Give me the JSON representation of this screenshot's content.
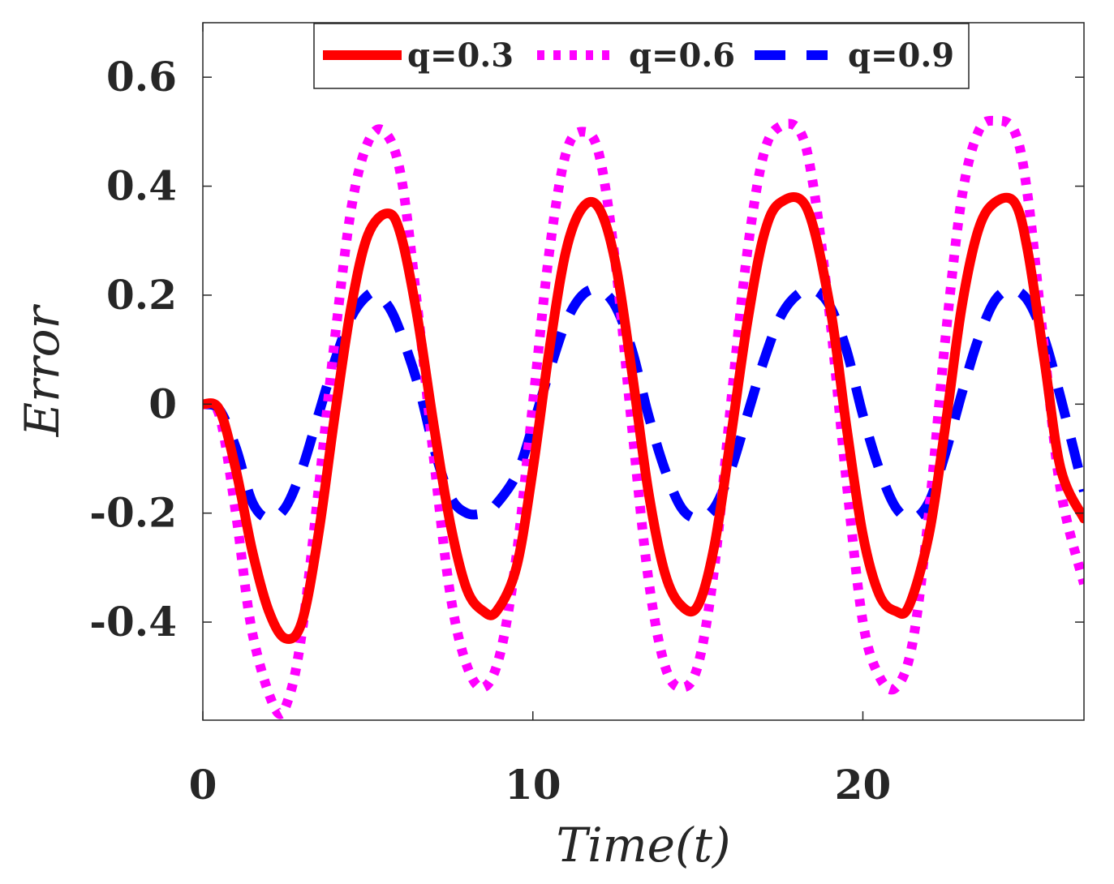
{
  "chart_data": {
    "type": "line",
    "title": "",
    "xlabel": "Time(t)",
    "ylabel": "Error",
    "xlim": [
      0,
      26.7
    ],
    "ylim": [
      -0.58,
      0.7
    ],
    "xticks": [
      0,
      10,
      20
    ],
    "xtick_labels": [
      "0",
      "10",
      "20"
    ],
    "yticks": [
      -0.4,
      -0.2,
      0,
      0.2,
      0.4,
      0.6
    ],
    "ytick_labels": [
      "-0.4",
      "-0.2",
      "0",
      "0.2",
      "0.4",
      "0.6"
    ],
    "grid": false,
    "legend_position": "top",
    "series": [
      {
        "name": "q=0.3",
        "color": "#ff0000",
        "style": "solid",
        "x": [
          0,
          0.5,
          1.0,
          1.5,
          2.0,
          2.5,
          3.0,
          3.5,
          4.0,
          4.5,
          5.0,
          5.6,
          6.0,
          6.5,
          7.0,
          7.5,
          8.0,
          8.5,
          8.9,
          9.5,
          10.0,
          10.5,
          11.0,
          11.5,
          12.0,
          12.5,
          13.0,
          13.5,
          14.0,
          14.5,
          15.0,
          15.5,
          16.0,
          16.5,
          17.0,
          17.5,
          18.3,
          19.0,
          19.5,
          20.0,
          20.5,
          21.0,
          21.4,
          22.0,
          22.5,
          23.0,
          23.5,
          24.0,
          24.6,
          25.0,
          25.5,
          26.0,
          26.7
        ],
        "values": [
          0,
          -0.01,
          -0.12,
          -0.27,
          -0.38,
          -0.43,
          -0.4,
          -0.24,
          -0.02,
          0.18,
          0.31,
          0.35,
          0.31,
          0.16,
          -0.04,
          -0.22,
          -0.34,
          -0.38,
          -0.38,
          -0.3,
          -0.12,
          0.1,
          0.28,
          0.36,
          0.36,
          0.26,
          0.06,
          -0.16,
          -0.31,
          -0.37,
          -0.37,
          -0.26,
          -0.06,
          0.15,
          0.31,
          0.37,
          0.36,
          0.18,
          -0.04,
          -0.24,
          -0.35,
          -0.38,
          -0.37,
          -0.24,
          -0.04,
          0.18,
          0.32,
          0.37,
          0.37,
          0.28,
          0.08,
          -0.12,
          -0.21
        ]
      },
      {
        "name": "q=0.6",
        "color": "#ff00ff",
        "style": "dotted",
        "x": [
          0,
          0.5,
          1.0,
          1.5,
          2.2,
          2.6,
          3.0,
          3.5,
          4.0,
          4.5,
          5.0,
          5.5,
          6.0,
          6.5,
          7.0,
          7.5,
          8.0,
          8.5,
          9.0,
          9.5,
          10.0,
          10.5,
          11.0,
          11.5,
          12.0,
          12.5,
          13.0,
          13.5,
          14.0,
          14.5,
          15.0,
          15.5,
          16.0,
          16.5,
          17.0,
          17.5,
          18.1,
          18.5,
          19.0,
          19.5,
          20.0,
          20.5,
          21.0,
          21.5,
          22.0,
          22.5,
          23.0,
          23.5,
          24.0,
          24.6,
          25.0,
          25.5,
          26.0,
          26.7
        ],
        "values": [
          0,
          -0.02,
          -0.2,
          -0.42,
          -0.56,
          -0.54,
          -0.42,
          -0.16,
          0.12,
          0.36,
          0.48,
          0.5,
          0.42,
          0.18,
          -0.1,
          -0.35,
          -0.48,
          -0.52,
          -0.46,
          -0.28,
          0.0,
          0.28,
          0.46,
          0.5,
          0.46,
          0.26,
          -0.04,
          -0.32,
          -0.48,
          -0.52,
          -0.48,
          -0.3,
          0.0,
          0.28,
          0.46,
          0.51,
          0.5,
          0.4,
          0.16,
          -0.14,
          -0.4,
          -0.5,
          -0.52,
          -0.44,
          -0.2,
          0.12,
          0.38,
          0.5,
          0.52,
          0.5,
          0.38,
          0.1,
          -0.16,
          -0.33
        ]
      },
      {
        "name": "q=0.9",
        "color": "#0000ff",
        "style": "dashed",
        "x": [
          0,
          0.5,
          1.0,
          1.5,
          2.0,
          2.5,
          3.0,
          3.5,
          4.0,
          4.5,
          5.0,
          5.3,
          5.8,
          6.5,
          7.0,
          7.5,
          8.0,
          8.5,
          8.8,
          9.5,
          10.0,
          10.5,
          11.0,
          11.5,
          12.0,
          12.5,
          13.0,
          13.5,
          14.0,
          14.5,
          15.0,
          15.5,
          16.0,
          16.5,
          17.0,
          17.5,
          18.0,
          18.5,
          19.0,
          19.5,
          20.0,
          20.5,
          21.0,
          21.5,
          22.0,
          22.5,
          23.0,
          23.5,
          24.0,
          24.5,
          25.0,
          25.5,
          26.0,
          26.7
        ],
        "values": [
          0,
          -0.01,
          -0.08,
          -0.18,
          -0.21,
          -0.19,
          -0.12,
          -0.02,
          0.08,
          0.16,
          0.2,
          0.2,
          0.16,
          0.04,
          -0.08,
          -0.17,
          -0.2,
          -0.2,
          -0.19,
          -0.13,
          -0.04,
          0.06,
          0.15,
          0.2,
          0.21,
          0.18,
          0.1,
          -0.02,
          -0.12,
          -0.19,
          -0.21,
          -0.19,
          -0.12,
          -0.02,
          0.08,
          0.16,
          0.2,
          0.21,
          0.18,
          0.1,
          -0.02,
          -0.12,
          -0.19,
          -0.21,
          -0.18,
          -0.09,
          0.02,
          0.12,
          0.19,
          0.21,
          0.19,
          0.12,
          0.01,
          -0.16
        ]
      }
    ]
  }
}
